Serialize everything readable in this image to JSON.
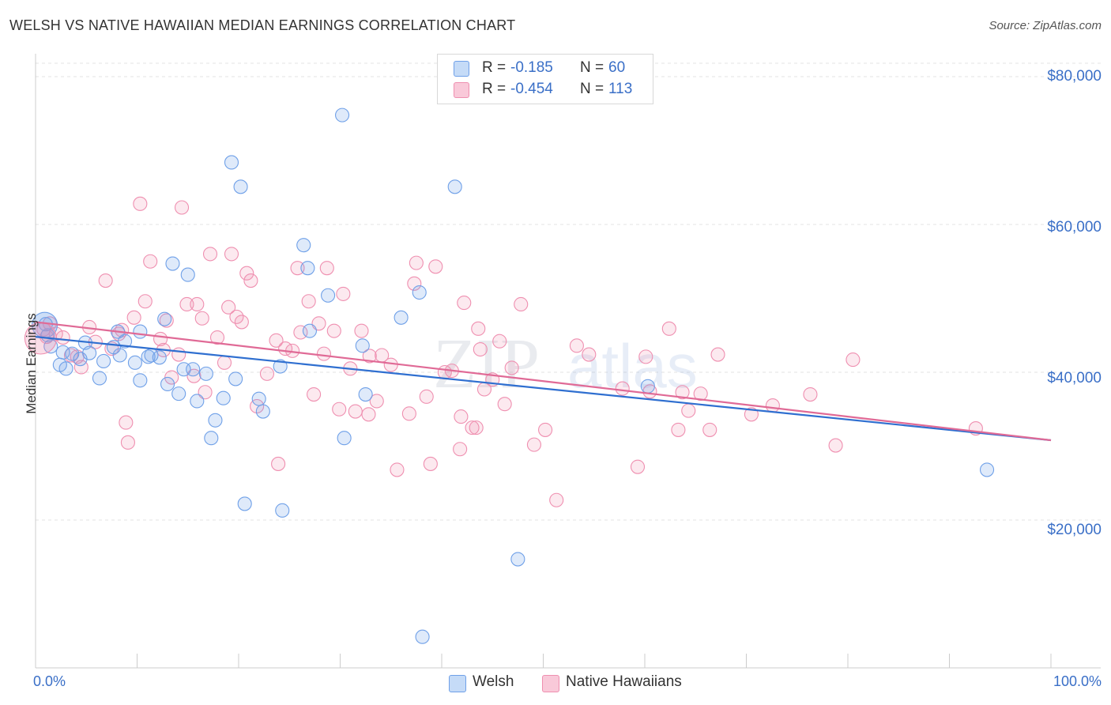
{
  "title": "WELSH VS NATIVE HAWAIIAN MEDIAN EARNINGS CORRELATION CHART",
  "source": "Source: ZipAtlas.com",
  "watermark": {
    "zip": "ZIP",
    "atlas": "atlas"
  },
  "stats": [
    {
      "r_label": "R =",
      "r_value": "-0.185",
      "n_label": "N =",
      "n_value": "60",
      "color": "#6fa0e8"
    },
    {
      "r_label": "R =",
      "r_value": "-0.454",
      "n_label": "N =",
      "n_value": "113",
      "color": "#ef8fb0"
    }
  ],
  "legend": [
    {
      "label": "Welsh",
      "color": "#6fa0e8"
    },
    {
      "label": "Native Hawaiians",
      "color": "#ef8fb0"
    }
  ],
  "chart_data": {
    "type": "scatter",
    "title": "WELSH VS NATIVE HAWAIIAN MEDIAN EARNINGS CORRELATION CHART",
    "xlabel": "",
    "ylabel": "Median Earnings",
    "xlim": [
      0,
      100
    ],
    "ylim": [
      0,
      80000
    ],
    "x_tick_labels": [
      "0.0%",
      "100.0%"
    ],
    "y_ticks": [
      20000,
      40000,
      60000,
      80000
    ],
    "y_tick_labels": [
      "$20,000",
      "$40,000",
      "$60,000",
      "$80,000"
    ],
    "grid": true,
    "legend_position": "bottom-center",
    "series": [
      {
        "name": "Welsh",
        "color": "#6fa0e8",
        "trend": {
          "x": [
            0,
            100
          ],
          "y": [
            44800,
            30800
          ]
        },
        "points": [
          [
            1.0,
            46500
          ],
          [
            1.2,
            45000
          ],
          [
            1.5,
            43500
          ],
          [
            2.4,
            41000
          ],
          [
            2.7,
            42700
          ],
          [
            3.0,
            40500
          ],
          [
            3.6,
            42500
          ],
          [
            4.4,
            41800
          ],
          [
            4.9,
            44000
          ],
          [
            5.3,
            42600
          ],
          [
            6.3,
            39200
          ],
          [
            6.7,
            41500
          ],
          [
            7.7,
            43400
          ],
          [
            8.1,
            45500
          ],
          [
            8.3,
            42300
          ],
          [
            8.8,
            44200
          ],
          [
            9.8,
            41300
          ],
          [
            10.3,
            38900
          ],
          [
            10.3,
            45500
          ],
          [
            11.1,
            42100
          ],
          [
            11.4,
            42300
          ],
          [
            12.2,
            42000
          ],
          [
            12.7,
            47200
          ],
          [
            13.0,
            38400
          ],
          [
            13.5,
            54700
          ],
          [
            14.1,
            37100
          ],
          [
            14.6,
            40400
          ],
          [
            15.0,
            53200
          ],
          [
            15.5,
            40400
          ],
          [
            15.9,
            36100
          ],
          [
            16.8,
            39800
          ],
          [
            17.3,
            31100
          ],
          [
            17.7,
            33500
          ],
          [
            18.5,
            36500
          ],
          [
            19.3,
            68400
          ],
          [
            19.7,
            39100
          ],
          [
            20.2,
            65100
          ],
          [
            20.6,
            22200
          ],
          [
            22.0,
            36400
          ],
          [
            22.4,
            34700
          ],
          [
            24.1,
            40800
          ],
          [
            24.3,
            21300
          ],
          [
            26.4,
            57200
          ],
          [
            26.8,
            54100
          ],
          [
            27.0,
            45600
          ],
          [
            28.8,
            50400
          ],
          [
            30.2,
            74800
          ],
          [
            30.4,
            31100
          ],
          [
            32.2,
            43600
          ],
          [
            32.5,
            37000
          ],
          [
            36.0,
            47400
          ],
          [
            37.8,
            50800
          ],
          [
            38.1,
            4200
          ],
          [
            41.3,
            65100
          ],
          [
            47.5,
            14700
          ],
          [
            60.3,
            38100
          ],
          [
            93.7,
            26800
          ]
        ]
      },
      {
        "name": "Native Hawaiians",
        "color": "#ef8fb0",
        "trend": {
          "x": [
            0,
            100
          ],
          "y": [
            46800,
            30800
          ]
        },
        "points": [
          [
            0.8,
            45800
          ],
          [
            1.1,
            44800
          ],
          [
            1.4,
            46600
          ],
          [
            2.0,
            45200
          ],
          [
            2.7,
            44700
          ],
          [
            3.5,
            42300
          ],
          [
            4.1,
            42100
          ],
          [
            4.5,
            40700
          ],
          [
            5.3,
            46100
          ],
          [
            5.9,
            44100
          ],
          [
            6.9,
            52400
          ],
          [
            7.5,
            43200
          ],
          [
            8.2,
            45200
          ],
          [
            8.5,
            45700
          ],
          [
            8.9,
            33200
          ],
          [
            9.1,
            30500
          ],
          [
            9.7,
            47400
          ],
          [
            10.3,
            62800
          ],
          [
            10.8,
            49600
          ],
          [
            11.3,
            55000
          ],
          [
            12.3,
            44500
          ],
          [
            12.6,
            43000
          ],
          [
            12.9,
            47000
          ],
          [
            13.4,
            39300
          ],
          [
            14.1,
            42400
          ],
          [
            14.4,
            62300
          ],
          [
            14.9,
            49200
          ],
          [
            15.6,
            39500
          ],
          [
            15.9,
            49200
          ],
          [
            16.4,
            47300
          ],
          [
            16.7,
            37300
          ],
          [
            17.2,
            56000
          ],
          [
            17.9,
            44700
          ],
          [
            18.6,
            41300
          ],
          [
            19.0,
            48800
          ],
          [
            19.3,
            56000
          ],
          [
            19.8,
            47500
          ],
          [
            20.3,
            46800
          ],
          [
            20.8,
            53400
          ],
          [
            21.2,
            52400
          ],
          [
            21.8,
            35400
          ],
          [
            22.8,
            39800
          ],
          [
            23.7,
            44300
          ],
          [
            23.9,
            27600
          ],
          [
            24.6,
            43200
          ],
          [
            25.3,
            42900
          ],
          [
            25.8,
            54100
          ],
          [
            26.1,
            45400
          ],
          [
            26.9,
            49600
          ],
          [
            27.4,
            37000
          ],
          [
            27.9,
            46600
          ],
          [
            28.4,
            42500
          ],
          [
            28.7,
            54100
          ],
          [
            29.4,
            45600
          ],
          [
            29.9,
            35000
          ],
          [
            30.3,
            50600
          ],
          [
            31.0,
            40500
          ],
          [
            31.5,
            34700
          ],
          [
            32.1,
            45600
          ],
          [
            32.8,
            34300
          ],
          [
            32.9,
            42200
          ],
          [
            33.6,
            36100
          ],
          [
            34.1,
            42300
          ],
          [
            35.0,
            41000
          ],
          [
            35.6,
            26800
          ],
          [
            36.8,
            34400
          ],
          [
            37.3,
            52000
          ],
          [
            37.5,
            54800
          ],
          [
            38.5,
            36700
          ],
          [
            38.9,
            27600
          ],
          [
            39.4,
            54300
          ],
          [
            40.3,
            40000
          ],
          [
            41.0,
            40200
          ],
          [
            41.8,
            29600
          ],
          [
            41.9,
            34000
          ],
          [
            42.2,
            49400
          ],
          [
            43.0,
            32500
          ],
          [
            43.4,
            32500
          ],
          [
            43.6,
            45900
          ],
          [
            43.8,
            43100
          ],
          [
            44.2,
            37700
          ],
          [
            45.0,
            39000
          ],
          [
            45.7,
            44200
          ],
          [
            46.2,
            35700
          ],
          [
            46.9,
            40600
          ],
          [
            47.8,
            49200
          ],
          [
            49.1,
            30200
          ],
          [
            50.2,
            32200
          ],
          [
            51.3,
            22700
          ],
          [
            53.3,
            43600
          ],
          [
            54.5,
            42400
          ],
          [
            57.8,
            37800
          ],
          [
            59.3,
            27200
          ],
          [
            60.1,
            42100
          ],
          [
            60.5,
            37400
          ],
          [
            62.4,
            45900
          ],
          [
            63.3,
            32200
          ],
          [
            63.7,
            37300
          ],
          [
            64.3,
            34800
          ],
          [
            65.5,
            37100
          ],
          [
            66.4,
            32200
          ],
          [
            67.2,
            42400
          ],
          [
            70.5,
            34300
          ],
          [
            72.6,
            35500
          ],
          [
            76.3,
            37000
          ],
          [
            78.8,
            30100
          ],
          [
            80.5,
            41700
          ],
          [
            92.6,
            32400
          ]
        ]
      }
    ]
  }
}
